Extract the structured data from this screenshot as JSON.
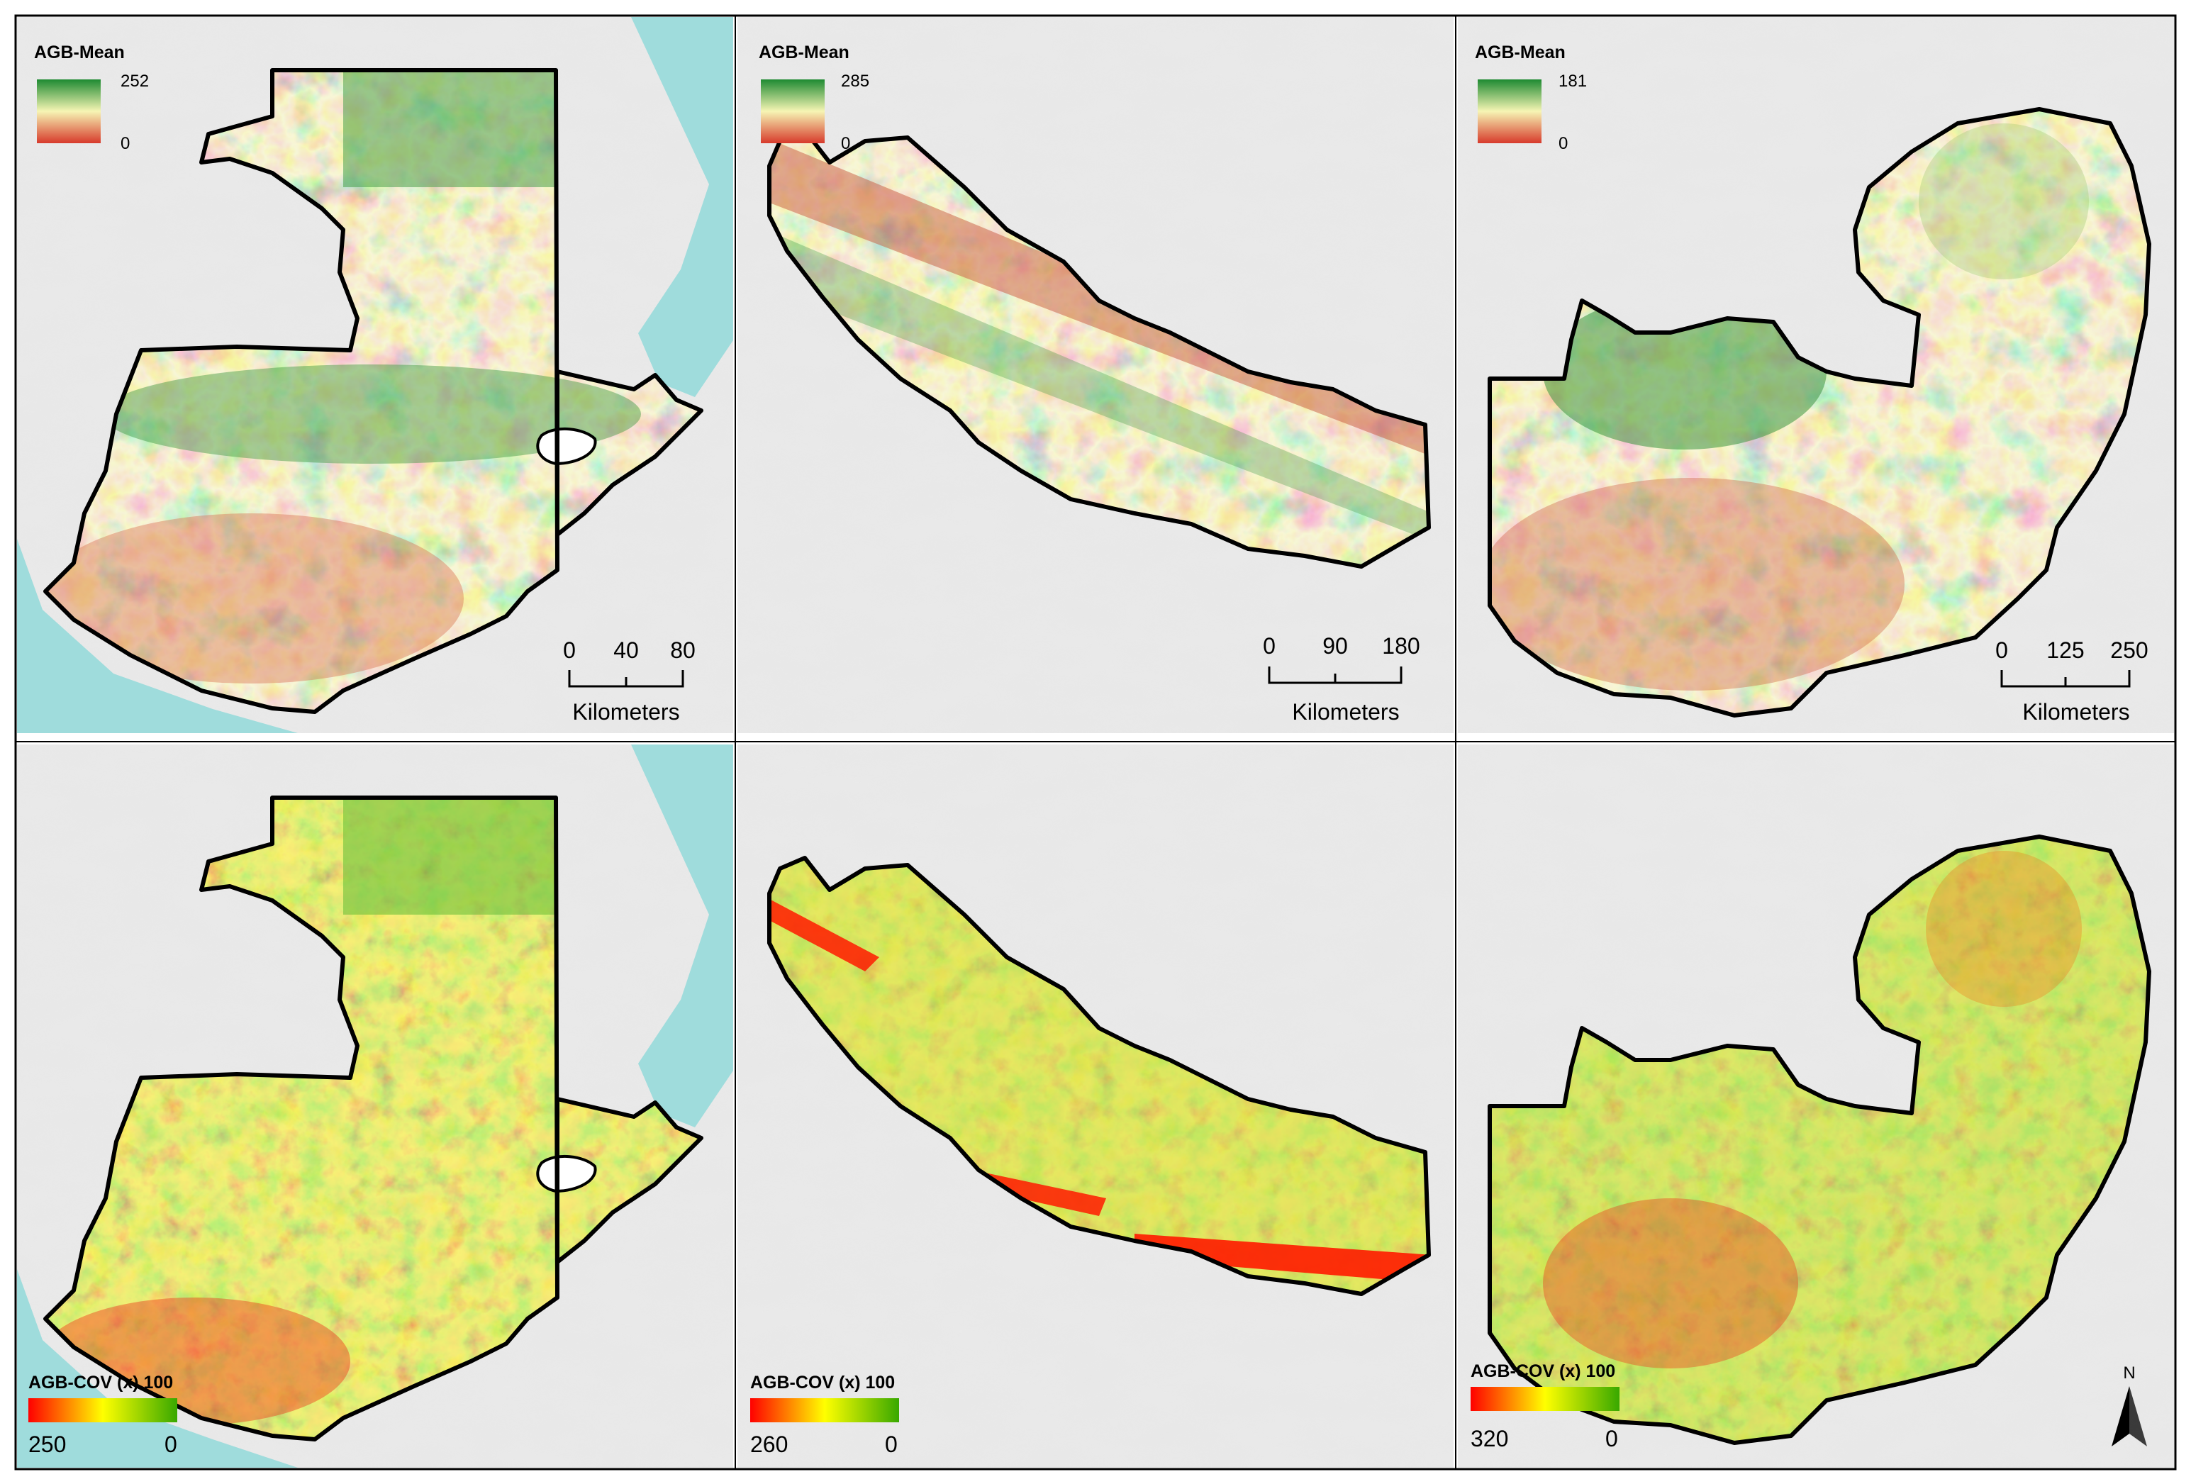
{
  "panels": [
    {
      "id": "guatemala-mean",
      "country": "Guatemala",
      "legend": {
        "title": "AGB-Mean",
        "max_label": "252",
        "min_label": "0",
        "ramp": [
          "#1e8a32",
          "#f6f5b4",
          "#d73a2b"
        ]
      },
      "scalebar": {
        "ticks": [
          "0",
          "40",
          "80"
        ],
        "unit": "Kilometers"
      }
    },
    {
      "id": "nepal-mean",
      "country": "Nepal",
      "legend": {
        "title": "AGB-Mean",
        "max_label": "285",
        "min_label": "0",
        "ramp": [
          "#1e8a32",
          "#f6f5b4",
          "#d73a2b"
        ]
      },
      "scalebar": {
        "ticks": [
          "0",
          "90",
          "180"
        ],
        "unit": "Kilometers"
      }
    },
    {
      "id": "zambia-mean",
      "country": "Zambia",
      "legend": {
        "title": "AGB-Mean",
        "max_label": "181",
        "min_label": "0",
        "ramp": [
          "#1e8a32",
          "#f6f5b4",
          "#d73a2b"
        ]
      },
      "scalebar": {
        "ticks": [
          "0",
          "125",
          "250"
        ],
        "unit": "Kilometers"
      }
    },
    {
      "id": "guatemala-cov",
      "country": "Guatemala",
      "legend": {
        "title": "AGB-COV (x) 100",
        "max_label": "250",
        "min_label": "0",
        "ramp": [
          "#ff0000",
          "#ffff00",
          "#38a800"
        ]
      }
    },
    {
      "id": "nepal-cov",
      "country": "Nepal",
      "legend": {
        "title": "AGB-COV (x) 100",
        "max_label": "260",
        "min_label": "0",
        "ramp": [
          "#ff0000",
          "#ffff00",
          "#38a800"
        ]
      }
    },
    {
      "id": "zambia-cov",
      "country": "Zambia",
      "legend": {
        "title": "AGB-COV (x) 100",
        "max_label": "320",
        "min_label": "0",
        "ramp": [
          "#ff0000",
          "#ffff00",
          "#38a800"
        ]
      },
      "north_arrow": {
        "label": "N"
      }
    }
  ],
  "colors": {
    "hillshade": "#e9e9e9",
    "ocean": "#9fdcdc",
    "country_outline": "#000000",
    "mean_high": "#3f9b46",
    "mean_mid": "#eeeaae",
    "mean_low": "#d56a4c",
    "cov_high": "#6cc13a",
    "cov_mid": "#e8e23a",
    "cov_low": "#ee3a1c"
  }
}
